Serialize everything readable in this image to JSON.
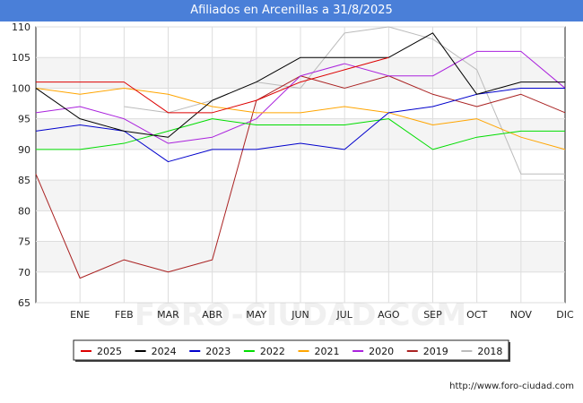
{
  "header": {
    "title": "Afiliados en Arcenillas a 31/8/2025"
  },
  "footer": {
    "url": "http://www.foro-ciudad.com"
  },
  "watermark": "FORO-CIUDAD.COM",
  "chart_data": {
    "type": "line",
    "title": "Afiliados en Arcenillas a 31/8/2025",
    "x_tick_labels": [
      "ENE",
      "FEB",
      "MAR",
      "ABR",
      "MAY",
      "JUN",
      "JUL",
      "AGO",
      "SEP",
      "OCT",
      "NOV",
      "DIC"
    ],
    "y_tick_labels": [
      "65",
      "70",
      "75",
      "80",
      "85",
      "90",
      "95",
      "100",
      "105",
      "110"
    ],
    "ylim": [
      65,
      110
    ],
    "x_start": "DIC (año anterior)",
    "grid": true,
    "legend_position": "bottom",
    "series": [
      {
        "name": "2025",
        "color": "#dd0000",
        "values": [
          101,
          101,
          101,
          96,
          96,
          98,
          101,
          103,
          105,
          null,
          null,
          null,
          null
        ]
      },
      {
        "name": "2024",
        "color": "#000000",
        "values": [
          100,
          95,
          93,
          92,
          98,
          101,
          105,
          105,
          105,
          109,
          99,
          101,
          101
        ]
      },
      {
        "name": "2023",
        "color": "#0000cc",
        "values": [
          93,
          94,
          93,
          88,
          90,
          90,
          91,
          90,
          96,
          97,
          99,
          100,
          100
        ]
      },
      {
        "name": "2022",
        "color": "#00dd00",
        "values": [
          90,
          90,
          91,
          93,
          95,
          94,
          94,
          94,
          95,
          90,
          92,
          93,
          93
        ]
      },
      {
        "name": "2021",
        "color": "#ffa500",
        "values": [
          100,
          99,
          100,
          99,
          97,
          96,
          96,
          97,
          96,
          94,
          95,
          92,
          90
        ]
      },
      {
        "name": "2020",
        "color": "#aa22dd",
        "values": [
          96,
          97,
          95,
          91,
          92,
          95,
          102,
          104,
          102,
          102,
          106,
          106,
          100
        ]
      },
      {
        "name": "2019",
        "color": "#aa2222",
        "values": [
          86,
          69,
          72,
          70,
          72,
          98,
          102,
          100,
          102,
          99,
          97,
          99,
          96
        ]
      },
      {
        "name": "2018",
        "color": "#bbbbbb",
        "values": [
          null,
          null,
          97,
          96,
          98,
          101,
          100,
          109,
          110,
          108,
          103,
          86,
          86
        ]
      }
    ]
  }
}
